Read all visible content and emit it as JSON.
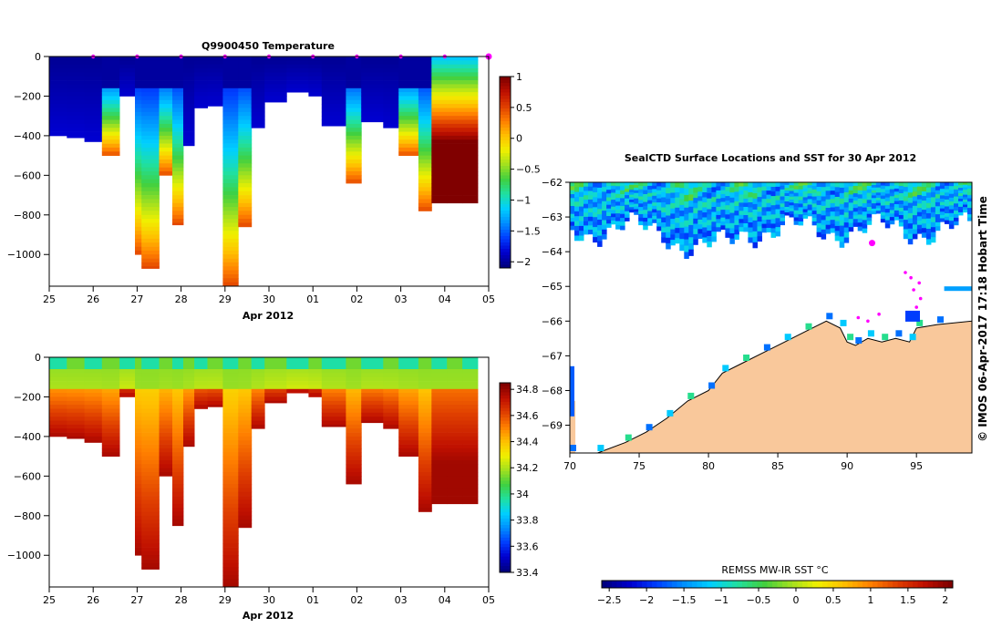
{
  "colors": {
    "land": "#f9c89b",
    "marker": "#ff00ff",
    "ramp": [
      "#000080",
      "#0000d0",
      "#0040ff",
      "#0090ff",
      "#00d0ff",
      "#20e0a0",
      "#40d040",
      "#a0e020",
      "#f0f000",
      "#ffc000",
      "#ff8000",
      "#e04000",
      "#c01000",
      "#800000"
    ]
  },
  "chart_data": [
    {
      "type": "heatmap",
      "title": "Q9900450  Temperature",
      "xlabel": "Apr 2012",
      "ylabel": "",
      "x_ticks": [
        "25",
        "26",
        "27",
        "28",
        "29",
        "30",
        "01",
        "02",
        "03",
        "04",
        "05"
      ],
      "x_range": [
        25,
        35
      ],
      "y_ticks": [
        0,
        -200,
        -400,
        -600,
        -800,
        -1000
      ],
      "y_tick_labels": [
        "0",
        "−200",
        "−400",
        "−600",
        "−800",
        "−1000"
      ],
      "y_range": [
        -1160,
        0
      ],
      "colorbar_range": [
        -2.1,
        1
      ],
      "colorbar_ticks": [
        "1",
        "0.5",
        "0",
        "−0.5",
        "−1",
        "−1.5",
        "−2"
      ],
      "colorbar_tick_values": [
        1,
        0.5,
        0,
        -0.5,
        -1,
        -1.5,
        -2
      ],
      "profile_days": [
        25.0,
        25.4,
        25.8,
        26.2,
        26.6,
        26.95,
        27.1,
        27.5,
        27.8,
        28.05,
        28.3,
        28.6,
        28.95,
        29.3,
        29.6,
        29.9,
        30.4,
        30.9,
        31.2,
        31.75,
        32.1,
        32.6,
        32.95,
        33.4,
        33.7,
        34.05,
        34.4
      ],
      "profile_max_depth": [
        400,
        410,
        430,
        500,
        200,
        1000,
        1070,
        600,
        850,
        450,
        260,
        250,
        1160,
        860,
        360,
        230,
        180,
        200,
        350,
        640,
        330,
        360,
        500,
        780,
        740,
        740,
        740
      ],
      "surface_markers": [
        26,
        27,
        28,
        29,
        30,
        31,
        32,
        33,
        34,
        35
      ]
    },
    {
      "type": "heatmap",
      "title": "",
      "xlabel": "Apr 2012",
      "ylabel": "",
      "x_ticks": [
        "25",
        "26",
        "27",
        "28",
        "29",
        "30",
        "01",
        "02",
        "03",
        "04",
        "05"
      ],
      "x_range": [
        25,
        35
      ],
      "y_ticks": [
        0,
        -200,
        -400,
        -600,
        -800,
        -1000
      ],
      "y_tick_labels": [
        "0",
        "−200",
        "−400",
        "−600",
        "−800",
        "−1000"
      ],
      "y_range": [
        -1160,
        0
      ],
      "colorbar_range": [
        33.4,
        34.85
      ],
      "colorbar_ticks": [
        "34.8",
        "34.6",
        "34.4",
        "34.2",
        "34",
        "33.8",
        "33.6",
        "33.4"
      ],
      "colorbar_tick_values": [
        34.8,
        34.6,
        34.4,
        34.2,
        34.0,
        33.8,
        33.6,
        33.4
      ]
    },
    {
      "type": "heatmap",
      "title": "SealCTD Surface Locations and SST for 30 Apr 2012",
      "x_ticks": [
        "70",
        "75",
        "80",
        "85",
        "90",
        "95"
      ],
      "x_range": [
        70,
        99
      ],
      "y_ticks": [
        "−62",
        "−63",
        "−64",
        "−65",
        "−66",
        "−67",
        "−68",
        "−69"
      ],
      "y_range": [
        -69.8,
        -62
      ],
      "colorbar_label": "REMSS MW-IR SST °C",
      "colorbar_ticks": [
        "−2.5",
        "−2",
        "−1.5",
        "−1",
        "−0.5",
        "0",
        "0.5",
        "1",
        "1.5",
        "2"
      ],
      "colorbar_range": [
        -2.6,
        2.1
      ],
      "latest_position": {
        "lon": 91.8,
        "lat": -63.75
      },
      "track_positions": [
        {
          "lon": 94.6,
          "lat": -64.75
        },
        {
          "lon": 95.2,
          "lat": -64.9
        },
        {
          "lon": 94.8,
          "lat": -65.1
        },
        {
          "lon": 95.3,
          "lat": -65.35
        },
        {
          "lon": 95.0,
          "lat": -65.6
        },
        {
          "lon": 94.2,
          "lat": -64.6
        },
        {
          "lon": 92.3,
          "lat": -65.8
        },
        {
          "lon": 91.5,
          "lat": -66.0
        },
        {
          "lon": 90.8,
          "lat": -65.9
        }
      ],
      "side_label": "©  IMOS 06-Apr-2017 17:18 Hobart Time"
    }
  ]
}
